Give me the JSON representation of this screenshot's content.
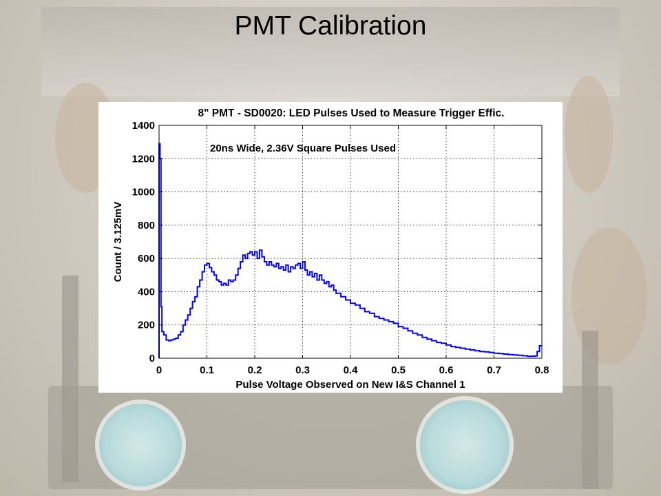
{
  "slide": {
    "title": "PMT Calibration"
  },
  "background": {
    "description_icon": "lab-photo",
    "tint": "#cfcabf",
    "window_color": "#b7dfe2"
  },
  "chart_data": {
    "type": "line",
    "style": "step-histogram",
    "title": "8\" PMT - SD0020: LED Pulses Used to Measure Trigger Effic.",
    "annotation": "20ns Wide, 2.36V Square Pulses Used",
    "xlabel": "Pulse Voltage Observed on New I&S Channel 1",
    "ylabel": "Count / 3.125mV",
    "xlim": [
      0,
      0.8
    ],
    "ylim": [
      0,
      1400
    ],
    "xticks": [
      0,
      0.1,
      0.2,
      0.3,
      0.4,
      0.5,
      0.6,
      0.7,
      0.8
    ],
    "yticks": [
      0,
      200,
      400,
      600,
      800,
      1000,
      1200,
      1400
    ],
    "grid": true,
    "series": [
      {
        "color": "#0000ff",
        "points": [
          [
            0,
            1290
          ],
          [
            0.002,
            1200
          ],
          [
            0.004,
            310
          ],
          [
            0.006,
            160
          ],
          [
            0.01,
            140
          ],
          [
            0.015,
            110
          ],
          [
            0.02,
            105
          ],
          [
            0.025,
            110
          ],
          [
            0.03,
            115
          ],
          [
            0.035,
            120
          ],
          [
            0.04,
            140
          ],
          [
            0.045,
            160
          ],
          [
            0.05,
            200
          ],
          [
            0.055,
            230
          ],
          [
            0.06,
            260
          ],
          [
            0.065,
            300
          ],
          [
            0.07,
            340
          ],
          [
            0.075,
            370
          ],
          [
            0.08,
            430
          ],
          [
            0.085,
            470
          ],
          [
            0.09,
            520
          ],
          [
            0.095,
            560
          ],
          [
            0.1,
            570
          ],
          [
            0.105,
            545
          ],
          [
            0.11,
            520
          ],
          [
            0.115,
            500
          ],
          [
            0.12,
            470
          ],
          [
            0.125,
            460
          ],
          [
            0.13,
            440
          ],
          [
            0.135,
            450
          ],
          [
            0.14,
            440
          ],
          [
            0.145,
            470
          ],
          [
            0.15,
            460
          ],
          [
            0.155,
            470
          ],
          [
            0.16,
            500
          ],
          [
            0.165,
            540
          ],
          [
            0.17,
            580
          ],
          [
            0.175,
            620
          ],
          [
            0.18,
            600
          ],
          [
            0.185,
            630
          ],
          [
            0.19,
            640
          ],
          [
            0.195,
            620
          ],
          [
            0.2,
            640
          ],
          [
            0.205,
            600
          ],
          [
            0.21,
            650
          ],
          [
            0.215,
            610
          ],
          [
            0.22,
            580
          ],
          [
            0.225,
            560
          ],
          [
            0.23,
            580
          ],
          [
            0.235,
            560
          ],
          [
            0.24,
            550
          ],
          [
            0.245,
            570
          ],
          [
            0.25,
            540
          ],
          [
            0.255,
            550
          ],
          [
            0.26,
            530
          ],
          [
            0.265,
            560
          ],
          [
            0.27,
            520
          ],
          [
            0.275,
            550
          ],
          [
            0.28,
            540
          ],
          [
            0.285,
            560
          ],
          [
            0.29,
            570
          ],
          [
            0.295,
            540
          ],
          [
            0.3,
            580
          ],
          [
            0.305,
            530
          ],
          [
            0.31,
            500
          ],
          [
            0.315,
            520
          ],
          [
            0.32,
            490
          ],
          [
            0.325,
            510
          ],
          [
            0.33,
            470
          ],
          [
            0.335,
            500
          ],
          [
            0.34,
            470
          ],
          [
            0.345,
            450
          ],
          [
            0.35,
            460
          ],
          [
            0.355,
            430
          ],
          [
            0.36,
            440
          ],
          [
            0.365,
            410
          ],
          [
            0.37,
            390
          ],
          [
            0.38,
            370
          ],
          [
            0.39,
            350
          ],
          [
            0.4,
            330
          ],
          [
            0.41,
            320
          ],
          [
            0.42,
            300
          ],
          [
            0.43,
            280
          ],
          [
            0.44,
            270
          ],
          [
            0.45,
            250
          ],
          [
            0.46,
            240
          ],
          [
            0.47,
            230
          ],
          [
            0.48,
            220
          ],
          [
            0.49,
            210
          ],
          [
            0.5,
            190
          ],
          [
            0.51,
            180
          ],
          [
            0.52,
            165
          ],
          [
            0.53,
            150
          ],
          [
            0.54,
            140
          ],
          [
            0.55,
            125
          ],
          [
            0.56,
            115
          ],
          [
            0.57,
            105
          ],
          [
            0.58,
            95
          ],
          [
            0.59,
            90
          ],
          [
            0.6,
            80
          ],
          [
            0.61,
            70
          ],
          [
            0.62,
            65
          ],
          [
            0.63,
            60
          ],
          [
            0.64,
            55
          ],
          [
            0.65,
            50
          ],
          [
            0.66,
            45
          ],
          [
            0.67,
            40
          ],
          [
            0.68,
            38
          ],
          [
            0.69,
            35
          ],
          [
            0.7,
            30
          ],
          [
            0.71,
            28
          ],
          [
            0.72,
            25
          ],
          [
            0.73,
            22
          ],
          [
            0.74,
            20
          ],
          [
            0.75,
            18
          ],
          [
            0.76,
            15
          ],
          [
            0.77,
            12
          ],
          [
            0.78,
            12
          ],
          [
            0.785,
            14
          ],
          [
            0.79,
            40
          ],
          [
            0.795,
            75
          ]
        ]
      }
    ]
  }
}
